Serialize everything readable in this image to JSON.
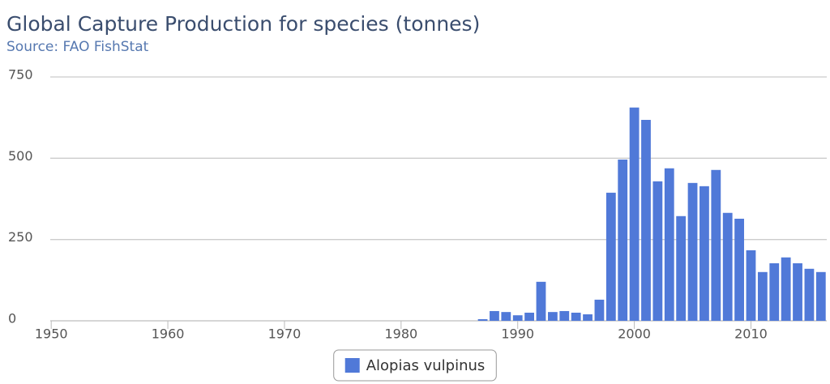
{
  "chart_data": {
    "type": "bar",
    "title": "Global Capture Production for species (tonnes)",
    "subtitle": "Source: FAO FishStat",
    "x": [
      1987,
      1988,
      1989,
      1990,
      1991,
      1992,
      1993,
      1994,
      1995,
      1996,
      1997,
      1998,
      1999,
      2000,
      2001,
      2002,
      2003,
      2004,
      2005,
      2006,
      2007,
      2008,
      2009,
      2010,
      2011,
      2012,
      2013,
      2014,
      2015,
      2016
    ],
    "series": [
      {
        "name": "Alopias vulpinus",
        "color": "#5079d8",
        "values": [
          5,
          30,
          27,
          17,
          25,
          120,
          27,
          30,
          25,
          20,
          65,
          394,
          496,
          656,
          618,
          429,
          469,
          322,
          424,
          414,
          464,
          332,
          314,
          217,
          150,
          177,
          195,
          177,
          160,
          150
        ]
      }
    ],
    "xlim": [
      1949.5,
      2016.5
    ],
    "xticks": [
      1950,
      1960,
      1970,
      1980,
      1990,
      2000,
      2010
    ],
    "ylim": [
      0,
      750
    ],
    "yticks": [
      0,
      250,
      500,
      750
    ],
    "grid": true,
    "legend": "bottom"
  }
}
